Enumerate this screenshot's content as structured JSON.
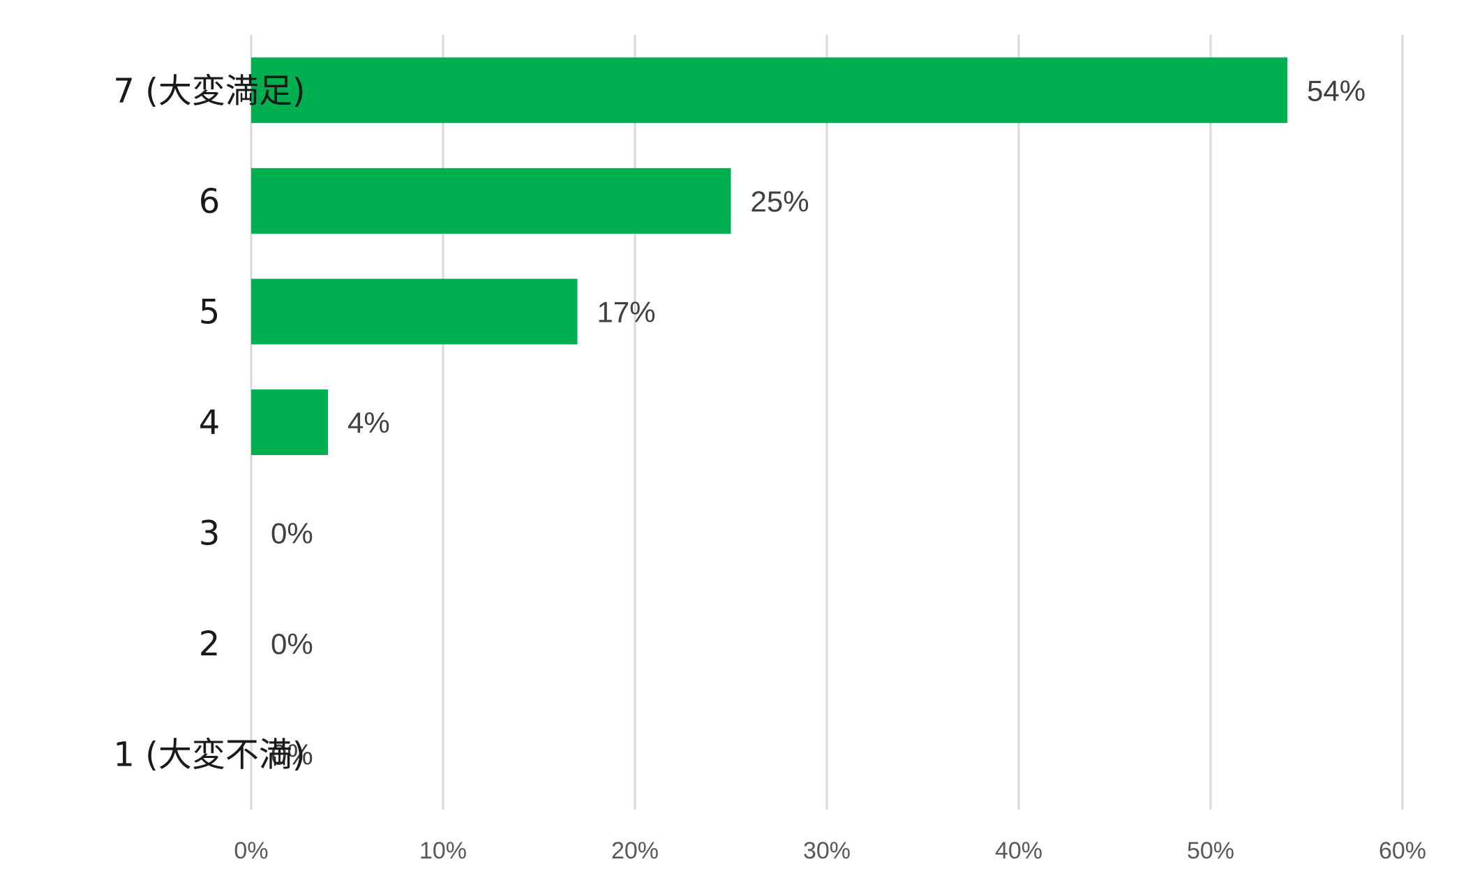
{
  "chart_data": {
    "type": "bar",
    "orientation": "horizontal",
    "categories": [
      "7 (大変満足)",
      "6",
      "5",
      "4",
      "3",
      "2",
      "1 (大変不満)"
    ],
    "values": [
      54,
      25,
      17,
      4,
      0,
      0,
      0
    ],
    "data_labels": [
      "54%",
      "25%",
      "17%",
      "4%",
      "0%",
      "0%",
      "0%"
    ],
    "xticks": [
      "0%",
      "10%",
      "20%",
      "30%",
      "40%",
      "50%",
      "60%"
    ],
    "xlim": [
      0,
      60
    ],
    "grid": "vertical",
    "legend": "none",
    "title": "",
    "xlabel": "",
    "ylabel": "",
    "colors": {
      "bar": "#00b050",
      "grid": "#d9d9d9"
    }
  }
}
